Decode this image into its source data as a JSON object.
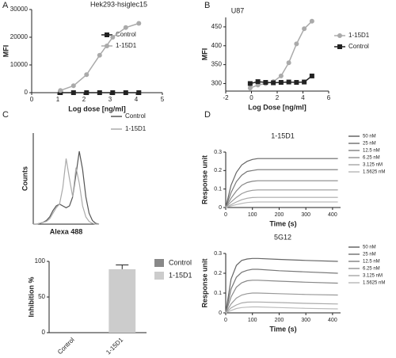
{
  "chart_data": [
    {
      "type": "line",
      "panel": "A",
      "title": "Hek293-hsiglec15",
      "x_label": "Log dose [ng/ml]",
      "y_label": "MFI",
      "x": [
        1.1,
        1.6,
        2.1,
        2.6,
        3.1,
        3.6,
        4.1
      ],
      "series": [
        {
          "name": "Control",
          "color": "#222222",
          "marker": "square",
          "values": [
            0,
            0,
            0,
            0,
            0,
            0,
            0
          ]
        },
        {
          "name": "1-15D1",
          "color": "#aaaaaa",
          "marker": "circle",
          "values": [
            800,
            2500,
            6500,
            13500,
            20000,
            23500,
            25000
          ]
        }
      ],
      "xlim": [
        0,
        5
      ],
      "xticks": [
        0,
        1,
        2,
        3,
        4,
        5
      ],
      "ylim": [
        0,
        30000
      ],
      "yticks": [
        0,
        10000,
        20000,
        30000
      ]
    },
    {
      "type": "line",
      "panel": "B",
      "title": "U87",
      "x_label": "Log Dose [ng/ml]",
      "y_label": "MFI",
      "x": [
        -0.1,
        0.5,
        1.1,
        1.7,
        2.3,
        2.9,
        3.5,
        4.1,
        4.7
      ],
      "series": [
        {
          "name": "1-15D1",
          "color": "#aaaaaa",
          "marker": "circle",
          "values": [
            288,
            296,
            300,
            305,
            320,
            355,
            405,
            445,
            465
          ]
        },
        {
          "name": "Control",
          "color": "#222222",
          "marker": "square",
          "values": [
            300,
            305,
            303,
            302,
            303,
            304,
            303,
            304,
            320
          ]
        }
      ],
      "xlim": [
        -2,
        6
      ],
      "xticks": [
        -2,
        0,
        2,
        4,
        6
      ],
      "ylim": [
        280,
        475
      ],
      "yticks": [
        300,
        350,
        400,
        450
      ]
    },
    {
      "type": "line",
      "panel": "C",
      "x_label": "Alexa 488",
      "y_label": "Counts",
      "x": [
        0,
        1,
        2,
        3,
        4,
        5,
        6,
        7,
        8,
        9,
        10,
        11,
        12,
        13,
        14,
        15,
        16,
        17,
        18,
        19,
        20
      ],
      "series": [
        {
          "name": "Control",
          "color": "#555555",
          "values": [
            0,
            0,
            1,
            2,
            4,
            8,
            15,
            20,
            22,
            20,
            18,
            20,
            30,
            55,
            80,
            60,
            30,
            12,
            4,
            1,
            0
          ]
        },
        {
          "name": "1-15D1",
          "color": "#aaaaaa",
          "values": [
            0,
            0,
            1,
            2,
            3,
            6,
            12,
            18,
            22,
            40,
            72,
            50,
            30,
            62,
            45,
            20,
            8,
            3,
            1,
            0,
            0
          ]
        }
      ],
      "xlim": [
        0,
        20
      ],
      "ylim": [
        0,
        100
      ]
    },
    {
      "type": "bar",
      "y_label": "Inhibition %",
      "categories": [
        "Control",
        "1-15D1"
      ],
      "values": [
        0,
        89
      ],
      "errors": [
        0,
        6
      ],
      "colors": [
        "#888888",
        "#cccccc"
      ],
      "ylim": [
        0,
        100
      ],
      "yticks": [
        0,
        50,
        100
      ]
    },
    {
      "type": "line",
      "panel": "D",
      "title": "1-15D1",
      "x_label": "Time (s)",
      "y_label": "Response unit",
      "x": [
        0,
        20,
        40,
        60,
        80,
        100,
        120,
        200,
        300,
        420
      ],
      "series": [
        {
          "name": "50 nM",
          "color": "#666666",
          "values": [
            0,
            0.12,
            0.19,
            0.23,
            0.25,
            0.26,
            0.265,
            0.265,
            0.265,
            0.265
          ]
        },
        {
          "name": "25 nM",
          "color": "#777777",
          "values": [
            0,
            0.08,
            0.14,
            0.175,
            0.195,
            0.2,
            0.205,
            0.205,
            0.205,
            0.205
          ]
        },
        {
          "name": "12.5 nM",
          "color": "#888888",
          "values": [
            0,
            0.05,
            0.09,
            0.12,
            0.135,
            0.142,
            0.145,
            0.145,
            0.145,
            0.145
          ]
        },
        {
          "name": "6.25 nM",
          "color": "#999999",
          "values": [
            0,
            0.03,
            0.055,
            0.075,
            0.087,
            0.093,
            0.095,
            0.095,
            0.095,
            0.095
          ]
        },
        {
          "name": "3.125 nM",
          "color": "#aaaaaa",
          "values": [
            0,
            0.015,
            0.03,
            0.042,
            0.05,
            0.054,
            0.055,
            0.055,
            0.055,
            0.055
          ]
        },
        {
          "name": "1.5625 nM",
          "color": "#bbbbbb",
          "values": [
            0,
            0.008,
            0.016,
            0.022,
            0.027,
            0.029,
            0.03,
            0.03,
            0.03,
            0.03
          ]
        }
      ],
      "xlim": [
        0,
        430
      ],
      "xticks": [
        0,
        100,
        200,
        300,
        400
      ],
      "ylim": [
        0,
        0.3
      ],
      "yticks": [
        0,
        0.1,
        0.2,
        0.3
      ]
    },
    {
      "type": "line",
      "title": "5G12",
      "x_label": "Time (s)",
      "y_label": "Response unit",
      "x": [
        0,
        20,
        40,
        60,
        80,
        100,
        120,
        200,
        300,
        420
      ],
      "series": [
        {
          "name": "50 nM",
          "color": "#666666",
          "values": [
            0,
            0.17,
            0.24,
            0.265,
            0.272,
            0.275,
            0.275,
            0.27,
            0.265,
            0.26
          ]
        },
        {
          "name": "25 nM",
          "color": "#777777",
          "values": [
            0,
            0.12,
            0.18,
            0.205,
            0.215,
            0.22,
            0.22,
            0.213,
            0.207,
            0.2
          ]
        },
        {
          "name": "12.5 nM",
          "color": "#888888",
          "values": [
            0,
            0.08,
            0.13,
            0.152,
            0.162,
            0.165,
            0.165,
            0.16,
            0.155,
            0.15
          ]
        },
        {
          "name": "6.25 nM",
          "color": "#999999",
          "values": [
            0,
            0.045,
            0.075,
            0.09,
            0.097,
            0.1,
            0.1,
            0.097,
            0.093,
            0.09
          ]
        },
        {
          "name": "3.125 nM",
          "color": "#aaaaaa",
          "values": [
            0,
            0.025,
            0.04,
            0.05,
            0.054,
            0.055,
            0.055,
            0.052,
            0.048,
            0.045
          ]
        },
        {
          "name": "1.5625 nM",
          "color": "#bbbbbb",
          "values": [
            0,
            0.012,
            0.022,
            0.027,
            0.029,
            0.03,
            0.03,
            0.027,
            0.023,
            0.02
          ]
        }
      ],
      "xlim": [
        0,
        430
      ],
      "xticks": [
        0,
        100,
        200,
        300,
        400
      ],
      "ylim": [
        0,
        0.3
      ],
      "yticks": [
        0,
        0.1,
        0.2,
        0.3
      ]
    }
  ]
}
